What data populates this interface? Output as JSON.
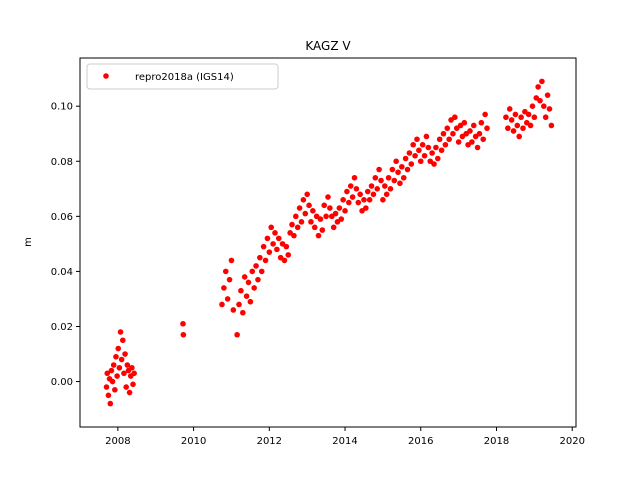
{
  "chart_data": {
    "type": "scatter",
    "title": "KAGZ V",
    "xlabel": "",
    "ylabel": "m",
    "xlim": [
      2007.0,
      2020.1
    ],
    "ylim": [
      -0.0165,
      0.1175
    ],
    "xticks": [
      2008,
      2010,
      2012,
      2014,
      2016,
      2018,
      2020
    ],
    "xtick_labels": [
      "2008",
      "2010",
      "2012",
      "2014",
      "2016",
      "2018",
      "2020"
    ],
    "yticks": [
      0.0,
      0.02,
      0.04,
      0.06,
      0.08,
      0.1
    ],
    "ytick_labels": [
      "0.00",
      "0.02",
      "0.04",
      "0.06",
      "0.08",
      "0.10"
    ],
    "grid": false,
    "legend_position": "top-left",
    "colors": {
      "series": "#ff0000"
    },
    "series": [
      {
        "name": "repro2018a (IGS14)",
        "marker": "dot",
        "x": [
          2007.7,
          2007.72,
          2007.75,
          2007.78,
          2007.8,
          2007.83,
          2007.86,
          2007.89,
          2007.92,
          2007.95,
          2007.98,
          2008.01,
          2008.04,
          2008.07,
          2008.1,
          2008.13,
          2008.16,
          2008.19,
          2008.22,
          2008.25,
          2008.28,
          2008.31,
          2008.34,
          2008.37,
          2008.4,
          2008.43,
          2009.72,
          2009.73,
          2010.75,
          2010.8,
          2010.85,
          2010.9,
          2010.95,
          2011.0,
          2011.05,
          2011.15,
          2011.2,
          2011.25,
          2011.3,
          2011.35,
          2011.4,
          2011.45,
          2011.5,
          2011.55,
          2011.6,
          2011.65,
          2011.7,
          2011.75,
          2011.8,
          2011.85,
          2011.9,
          2011.95,
          2012.0,
          2012.05,
          2012.1,
          2012.15,
          2012.2,
          2012.25,
          2012.3,
          2012.35,
          2012.4,
          2012.45,
          2012.5,
          2012.55,
          2012.6,
          2012.65,
          2012.7,
          2012.75,
          2012.8,
          2012.85,
          2012.9,
          2012.95,
          2013.0,
          2013.05,
          2013.1,
          2013.15,
          2013.2,
          2013.25,
          2013.3,
          2013.35,
          2013.4,
          2013.45,
          2013.5,
          2013.55,
          2013.6,
          2013.65,
          2013.7,
          2013.75,
          2013.8,
          2013.85,
          2013.9,
          2013.95,
          2014.0,
          2014.05,
          2014.1,
          2014.15,
          2014.2,
          2014.25,
          2014.3,
          2014.35,
          2014.4,
          2014.45,
          2014.5,
          2014.55,
          2014.6,
          2014.65,
          2014.7,
          2014.75,
          2014.8,
          2014.85,
          2014.9,
          2014.95,
          2015.0,
          2015.05,
          2015.1,
          2015.15,
          2015.2,
          2015.25,
          2015.3,
          2015.35,
          2015.4,
          2015.45,
          2015.5,
          2015.55,
          2015.6,
          2015.65,
          2015.7,
          2015.75,
          2015.8,
          2015.85,
          2015.9,
          2015.95,
          2016.0,
          2016.05,
          2016.1,
          2016.15,
          2016.2,
          2016.25,
          2016.3,
          2016.35,
          2016.4,
          2016.45,
          2016.5,
          2016.55,
          2016.6,
          2016.65,
          2016.7,
          2016.75,
          2016.8,
          2016.85,
          2016.9,
          2016.95,
          2017.0,
          2017.05,
          2017.1,
          2017.15,
          2017.2,
          2017.25,
          2017.3,
          2017.35,
          2017.4,
          2017.45,
          2017.5,
          2017.55,
          2017.6,
          2017.65,
          2017.7,
          2017.75,
          2018.25,
          2018.3,
          2018.35,
          2018.4,
          2018.45,
          2018.5,
          2018.55,
          2018.6,
          2018.65,
          2018.7,
          2018.75,
          2018.8,
          2018.85,
          2018.9,
          2018.95,
          2019.0,
          2019.05,
          2019.1,
          2019.15,
          2019.2,
          2019.25,
          2019.3,
          2019.35,
          2019.4,
          2019.45
        ],
        "y": [
          -0.002,
          0.003,
          -0.005,
          0.001,
          -0.008,
          0.004,
          0.0,
          0.006,
          -0.003,
          0.009,
          0.002,
          0.012,
          0.005,
          0.018,
          0.008,
          0.015,
          0.003,
          0.01,
          -0.002,
          0.006,
          0.004,
          -0.004,
          0.002,
          0.005,
          -0.001,
          0.003,
          0.021,
          0.017,
          0.028,
          0.034,
          0.04,
          0.03,
          0.037,
          0.044,
          0.026,
          0.017,
          0.028,
          0.033,
          0.025,
          0.038,
          0.031,
          0.036,
          0.029,
          0.04,
          0.034,
          0.042,
          0.037,
          0.045,
          0.04,
          0.049,
          0.044,
          0.052,
          0.047,
          0.056,
          0.05,
          0.054,
          0.048,
          0.052,
          0.045,
          0.05,
          0.044,
          0.049,
          0.046,
          0.054,
          0.057,
          0.053,
          0.06,
          0.056,
          0.063,
          0.058,
          0.066,
          0.061,
          0.068,
          0.064,
          0.058,
          0.062,
          0.056,
          0.06,
          0.053,
          0.059,
          0.055,
          0.064,
          0.06,
          0.067,
          0.063,
          0.06,
          0.056,
          0.061,
          0.058,
          0.063,
          0.059,
          0.066,
          0.062,
          0.069,
          0.065,
          0.071,
          0.067,
          0.074,
          0.07,
          0.065,
          0.068,
          0.062,
          0.066,
          0.063,
          0.069,
          0.066,
          0.071,
          0.068,
          0.074,
          0.07,
          0.077,
          0.073,
          0.066,
          0.071,
          0.068,
          0.074,
          0.07,
          0.077,
          0.073,
          0.08,
          0.076,
          0.072,
          0.078,
          0.074,
          0.081,
          0.077,
          0.083,
          0.079,
          0.086,
          0.082,
          0.088,
          0.084,
          0.08,
          0.086,
          0.082,
          0.089,
          0.085,
          0.08,
          0.083,
          0.079,
          0.085,
          0.081,
          0.088,
          0.084,
          0.09,
          0.086,
          0.092,
          0.088,
          0.095,
          0.09,
          0.096,
          0.092,
          0.087,
          0.093,
          0.089,
          0.094,
          0.09,
          0.086,
          0.091,
          0.087,
          0.093,
          0.089,
          0.085,
          0.09,
          0.094,
          0.088,
          0.097,
          0.092,
          0.096,
          0.092,
          0.099,
          0.095,
          0.091,
          0.097,
          0.093,
          0.089,
          0.096,
          0.092,
          0.098,
          0.094,
          0.097,
          0.093,
          0.1,
          0.096,
          0.103,
          0.107,
          0.102,
          0.109,
          0.1,
          0.096,
          0.104,
          0.099,
          0.093
        ]
      }
    ]
  }
}
